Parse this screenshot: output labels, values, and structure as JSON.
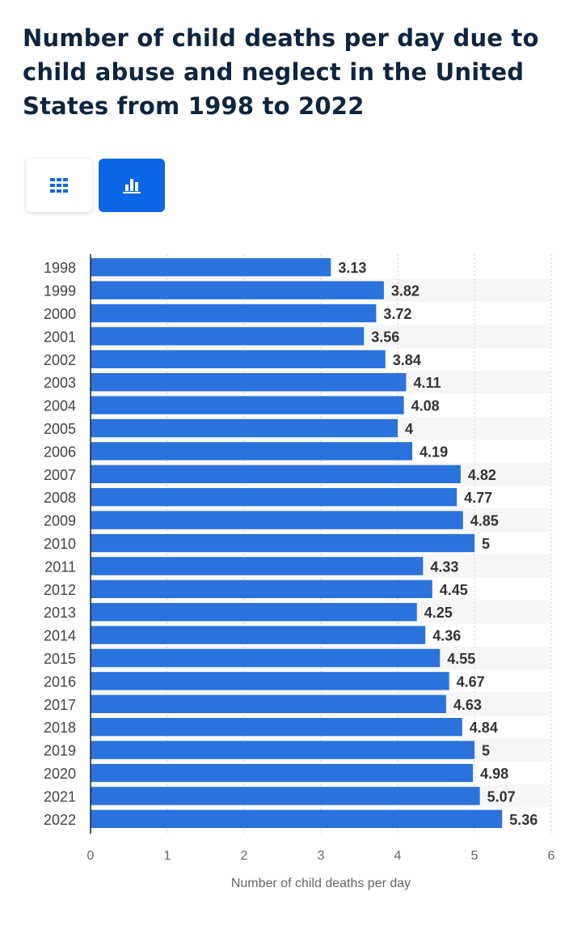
{
  "header": {
    "title": "Number of child deaths per day due to child abuse and neglect in the United States from 1998 to 2022"
  },
  "view_toggle": {
    "table_icon": "grid-icon",
    "chart_icon": "bar-chart-icon",
    "active": "chart",
    "active_color": "#0a66e4"
  },
  "chart_data": {
    "type": "bar",
    "orientation": "horizontal",
    "categories": [
      "1998",
      "1999",
      "2000",
      "2001",
      "2002",
      "2003",
      "2004",
      "2005",
      "2006",
      "2007",
      "2008",
      "2009",
      "2010",
      "2011",
      "2012",
      "2013",
      "2014",
      "2015",
      "2016",
      "2017",
      "2018",
      "2019",
      "2020",
      "2021",
      "2022"
    ],
    "values": [
      3.13,
      3.82,
      3.72,
      3.56,
      3.84,
      4.11,
      4.08,
      4,
      4.19,
      4.82,
      4.77,
      4.85,
      5,
      4.33,
      4.45,
      4.25,
      4.36,
      4.55,
      4.67,
      4.63,
      4.84,
      5,
      4.98,
      5.07,
      5.36
    ],
    "xlabel": "Number of child deaths per day",
    "xlim": [
      0,
      6
    ],
    "xticks": [
      0,
      1,
      2,
      3,
      4,
      5,
      6
    ],
    "grid": true,
    "bar_color": "#2a72dc"
  }
}
